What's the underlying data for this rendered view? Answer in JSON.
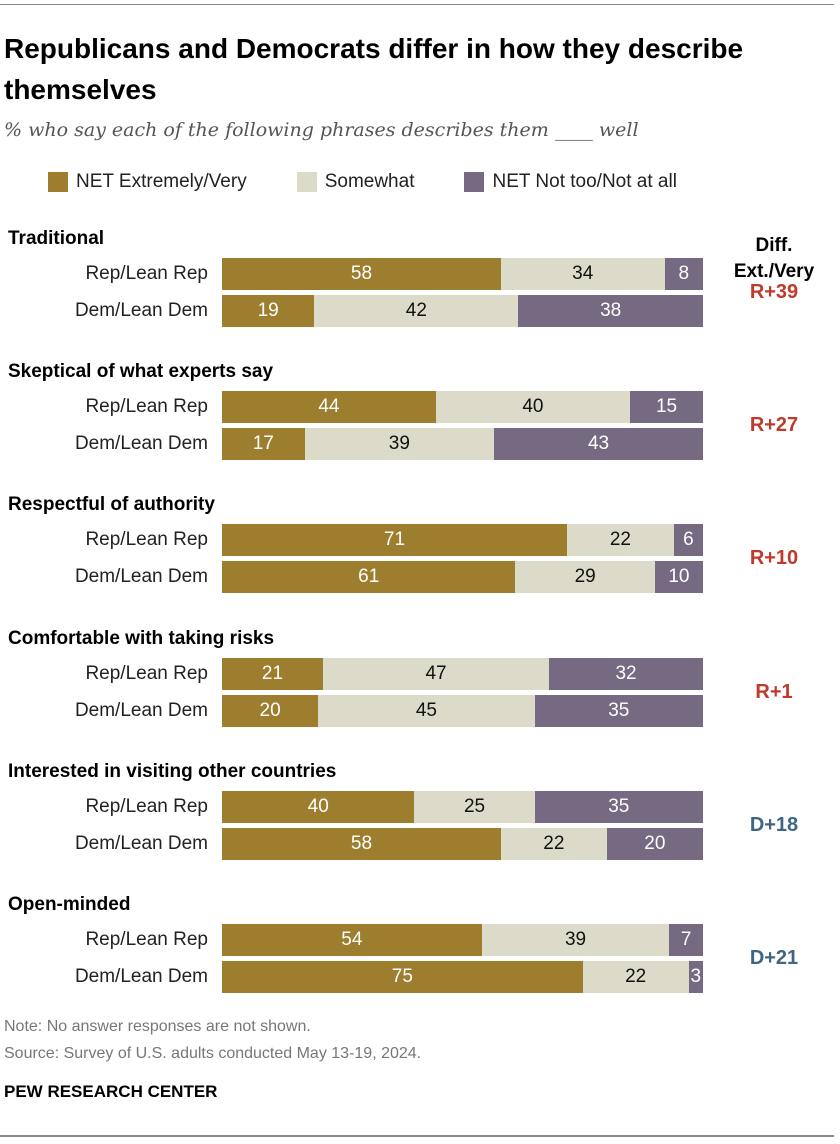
{
  "chart_data": {
    "type": "bar",
    "orientation": "horizontal-stacked",
    "title": "Republicans and Democrats differ in how they describe themselves",
    "subtitle": "% who say each of the following phrases describes them ____ well",
    "legend": [
      "NET Extremely/Very",
      "Somewhat",
      "NET Not too/Not at all"
    ],
    "legend_placement": "top",
    "colors": {
      "net": "#9c7e2e",
      "somewhat": "#dcdbc9",
      "not": "#756a82",
      "rep_diff": "#be3a2a",
      "dem_diff": "#3e6683"
    },
    "diff_header": [
      "Diff.",
      "Ext./Very"
    ],
    "groups": [
      {
        "title": "Traditional",
        "diff": "R+39",
        "diff_party": "rep",
        "rows": [
          {
            "label": "Rep/Lean Rep",
            "values": [
              58,
              34,
              8
            ]
          },
          {
            "label": "Dem/Lean Dem",
            "values": [
              19,
              42,
              38
            ]
          }
        ]
      },
      {
        "title": "Skeptical of what experts say",
        "diff": "R+27",
        "diff_party": "rep",
        "rows": [
          {
            "label": "Rep/Lean Rep",
            "values": [
              44,
              40,
              15
            ]
          },
          {
            "label": "Dem/Lean Dem",
            "values": [
              17,
              39,
              43
            ]
          }
        ]
      },
      {
        "title": "Respectful of authority",
        "diff": "R+10",
        "diff_party": "rep",
        "rows": [
          {
            "label": "Rep/Lean Rep",
            "values": [
              71,
              22,
              6
            ]
          },
          {
            "label": "Dem/Lean Dem",
            "values": [
              61,
              29,
              10
            ]
          }
        ]
      },
      {
        "title": "Comfortable with taking risks",
        "diff": "R+1",
        "diff_party": "rep",
        "rows": [
          {
            "label": "Rep/Lean Rep",
            "values": [
              21,
              47,
              32
            ]
          },
          {
            "label": "Dem/Lean Dem",
            "values": [
              20,
              45,
              35
            ]
          }
        ]
      },
      {
        "title": "Interested in visiting other countries",
        "diff": "D+18",
        "diff_party": "dem",
        "rows": [
          {
            "label": "Rep/Lean Rep",
            "values": [
              40,
              25,
              35
            ]
          },
          {
            "label": "Dem/Lean Dem",
            "values": [
              58,
              22,
              20
            ]
          }
        ]
      },
      {
        "title": "Open-minded",
        "diff": "D+21",
        "diff_party": "dem",
        "rows": [
          {
            "label": "Rep/Lean Rep",
            "values": [
              54,
              39,
              7
            ]
          },
          {
            "label": "Dem/Lean Dem",
            "values": [
              75,
              22,
              3
            ]
          }
        ]
      }
    ]
  },
  "notes": {
    "note": "Note: No answer responses are not shown.",
    "source": "Source: Survey of U.S. adults conducted May 13-19, 2024.",
    "org": "PEW RESEARCH CENTER"
  }
}
